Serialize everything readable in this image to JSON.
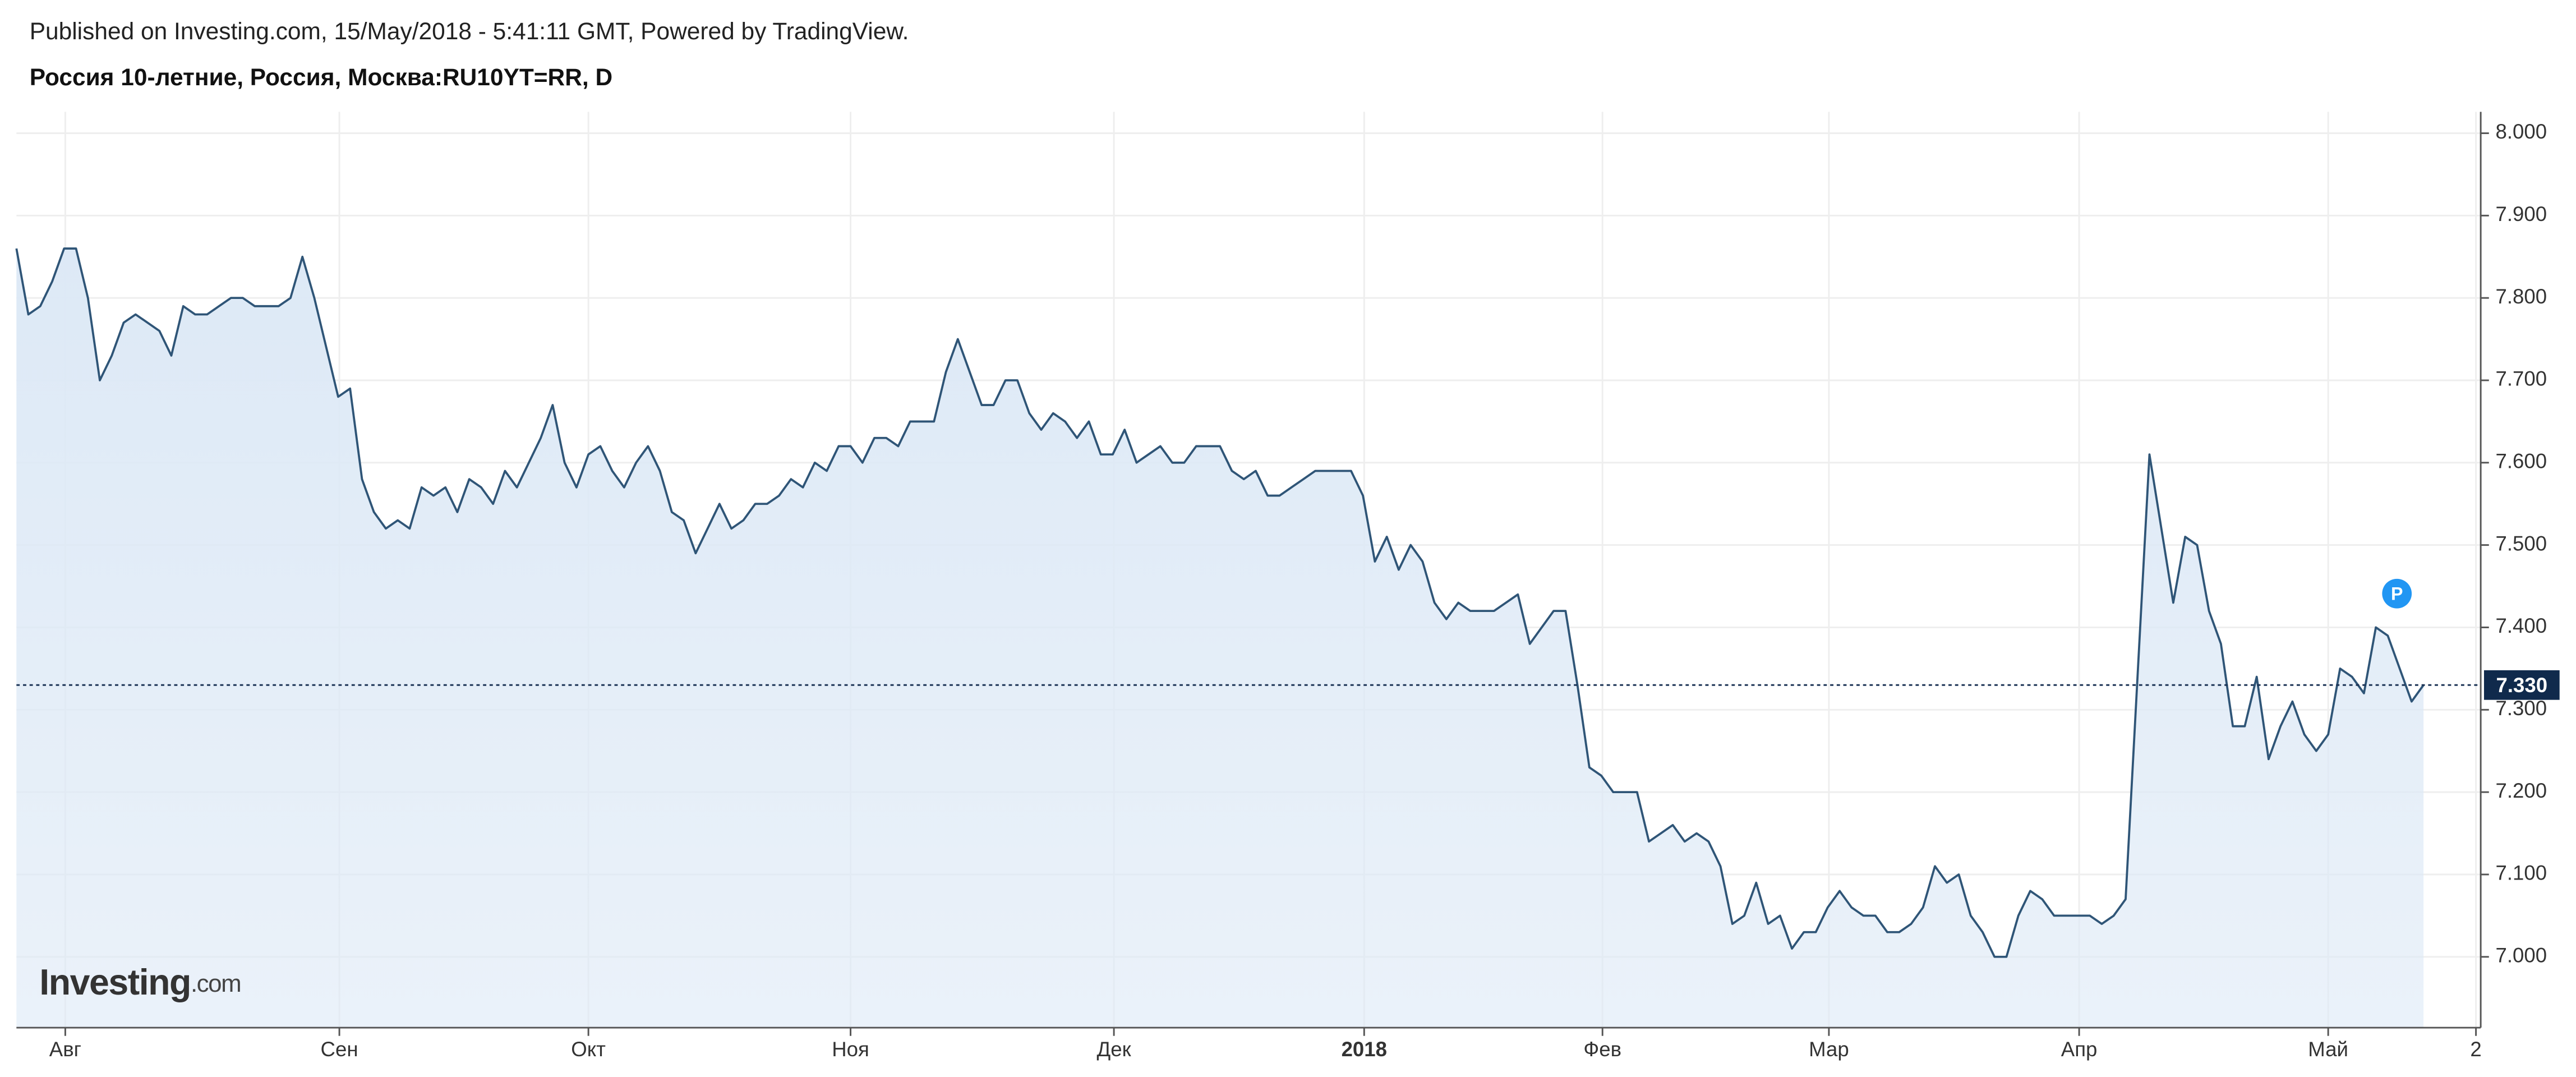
{
  "chart_data": {
    "type": "line",
    "header": "Published on Investing.com, 15/May/2018 - 5:41:11 GMT, Powered by TradingView.",
    "title": "Россия 10-летние, Россия, Москва:RU10YT=RR, D",
    "watermark": "Investing",
    "watermark_suffix": ".com",
    "marker_label": "P",
    "grid": true,
    "series": [
      {
        "color": "#2f5577",
        "fill": "#dde9f6",
        "values": [
          7.86,
          7.78,
          7.79,
          7.82,
          7.86,
          7.86,
          7.8,
          7.7,
          7.73,
          7.77,
          7.78,
          7.77,
          7.76,
          7.73,
          7.79,
          7.78,
          7.78,
          7.79,
          7.8,
          7.8,
          7.79,
          7.79,
          7.79,
          7.8,
          7.85,
          7.8,
          7.74,
          7.68,
          7.69,
          7.58,
          7.54,
          7.52,
          7.53,
          7.52,
          7.57,
          7.56,
          7.57,
          7.54,
          7.58,
          7.57,
          7.55,
          7.59,
          7.57,
          7.6,
          7.63,
          7.67,
          7.6,
          7.57,
          7.61,
          7.62,
          7.59,
          7.57,
          7.6,
          7.62,
          7.59,
          7.54,
          7.53,
          7.49,
          7.52,
          7.55,
          7.52,
          7.53,
          7.55,
          7.55,
          7.56,
          7.58,
          7.57,
          7.6,
          7.59,
          7.62,
          7.62,
          7.6,
          7.63,
          7.63,
          7.62,
          7.65,
          7.65,
          7.65,
          7.71,
          7.75,
          7.71,
          7.67,
          7.67,
          7.7,
          7.7,
          7.66,
          7.64,
          7.66,
          7.65,
          7.63,
          7.65,
          7.61,
          7.61,
          7.64,
          7.6,
          7.61,
          7.62,
          7.6,
          7.6,
          7.62,
          7.62,
          7.62,
          7.59,
          7.58,
          7.59,
          7.56,
          7.56,
          7.57,
          7.58,
          7.59,
          7.59,
          7.59,
          7.59,
          7.56,
          7.48,
          7.51,
          7.47,
          7.5,
          7.48,
          7.43,
          7.41,
          7.43,
          7.42,
          7.42,
          7.42,
          7.43,
          7.44,
          7.38,
          7.4,
          7.42,
          7.42,
          7.33,
          7.23,
          7.22,
          7.2,
          7.2,
          7.2,
          7.14,
          7.15,
          7.16,
          7.14,
          7.15,
          7.14,
          7.11,
          7.04,
          7.05,
          7.09,
          7.04,
          7.05,
          7.01,
          7.03,
          7.03,
          7.06,
          7.08,
          7.06,
          7.05,
          7.05,
          7.03,
          7.03,
          7.04,
          7.06,
          7.11,
          7.09,
          7.1,
          7.05,
          7.03,
          7.0,
          7.0,
          7.05,
          7.08,
          7.07,
          7.05,
          7.05,
          7.05,
          7.05,
          7.04,
          7.05,
          7.07,
          7.34,
          7.61,
          7.52,
          7.43,
          7.51,
          7.5,
          7.42,
          7.38,
          7.28,
          7.28,
          7.34,
          7.24,
          7.28,
          7.31,
          7.27,
          7.25,
          7.27,
          7.35,
          7.34,
          7.32,
          7.4,
          7.39,
          7.35,
          7.31,
          7.33
        ]
      }
    ],
    "xlim": [
      0,
      206.8
    ],
    "xticks": [
      {
        "value": 4.1,
        "label": "Авг"
      },
      {
        "value": 27.1,
        "label": "Сен"
      },
      {
        "value": 48.0,
        "label": "Окт"
      },
      {
        "value": 70.0,
        "label": "Ноя"
      },
      {
        "value": 92.1,
        "label": "Дек"
      },
      {
        "value": 113.1,
        "label": "2018"
      },
      {
        "value": 133.1,
        "label": "Фев"
      },
      {
        "value": 152.1,
        "label": "Мар"
      },
      {
        "value": 173.1,
        "label": "Апр"
      },
      {
        "value": 194.0,
        "label": "Май"
      },
      {
        "value": 206.4,
        "label": "2"
      }
    ],
    "ylim": [
      6.914,
      8.026
    ],
    "yticks": [
      {
        "value": 7.0,
        "label": "7.000"
      },
      {
        "value": 7.1,
        "label": "7.100"
      },
      {
        "value": 7.2,
        "label": "7.200"
      },
      {
        "value": 7.3,
        "label": "7.300"
      },
      {
        "value": 7.4,
        "label": "7.400"
      },
      {
        "value": 7.5,
        "label": "7.500"
      },
      {
        "value": 7.6,
        "label": "7.600"
      },
      {
        "value": 7.7,
        "label": "7.700"
      },
      {
        "value": 7.8,
        "label": "7.800"
      },
      {
        "value": 7.9,
        "label": "7.900"
      },
      {
        "value": 8.0,
        "label": "8.000"
      }
    ],
    "last_value": {
      "value": 7.33,
      "label": "7.330"
    }
  }
}
